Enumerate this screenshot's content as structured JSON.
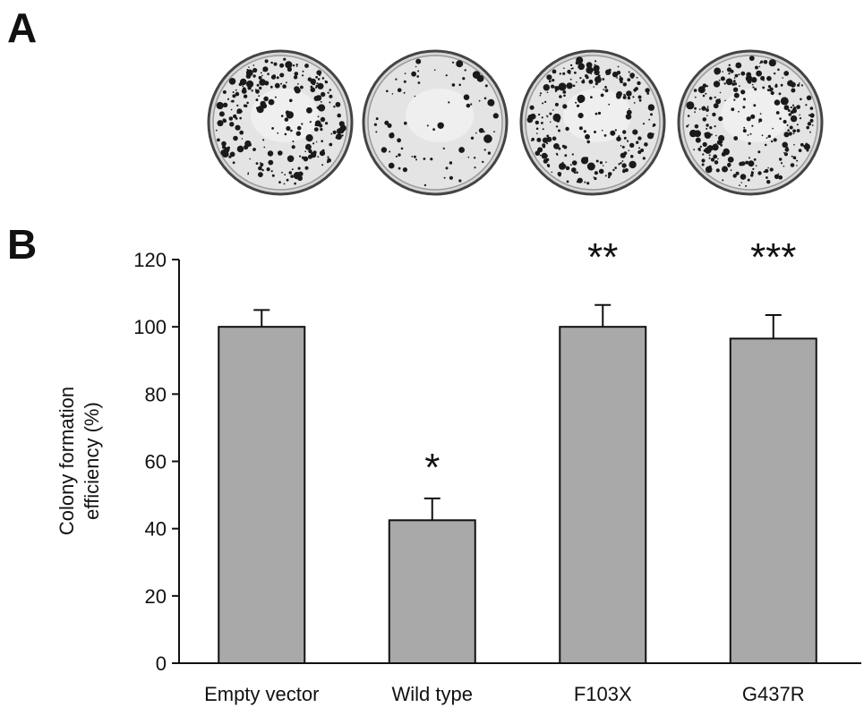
{
  "panels": {
    "a_label": "A",
    "b_label": "B"
  },
  "plates": {
    "count": 4,
    "colony_density": [
      0.8,
      0.25,
      0.75,
      0.85
    ]
  },
  "chart_data": {
    "type": "bar",
    "title": "",
    "categories": [
      "Empty vector",
      "Wild type",
      "F103X",
      "G437R"
    ],
    "values": [
      100,
      42.5,
      100,
      96.5
    ],
    "errors": [
      5,
      6.5,
      6.5,
      7
    ],
    "significance": [
      "",
      "*",
      "**",
      "***"
    ],
    "ylabel_lines": [
      "Colony formation",
      "efficiency (%)"
    ],
    "xlabel": "",
    "ylim": [
      0,
      120
    ],
    "yticks": [
      0,
      20,
      40,
      60,
      80,
      100,
      120
    ],
    "grid": false,
    "bar_color": "#a9a9a9",
    "edge_color": "#111111"
  }
}
